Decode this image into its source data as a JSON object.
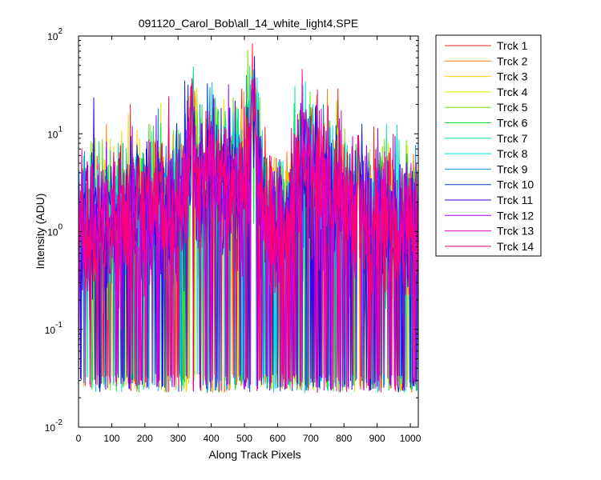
{
  "chart_data": {
    "type": "line",
    "title": "091120_Carol_Bob\\all_14_white_light4.SPE",
    "xlabel": "Along Track Pixels",
    "ylabel": "Intensity (ADU)",
    "xlim": [
      0,
      1024
    ],
    "ylim": [
      0.01,
      100
    ],
    "yscale": "log",
    "grid": false,
    "legend_position": "outside-right",
    "x_ticks": [
      "0",
      "100",
      "200",
      "300",
      "400",
      "500",
      "600",
      "700",
      "800",
      "900",
      "1000"
    ],
    "x_tick_values": [
      0,
      100,
      200,
      300,
      400,
      500,
      600,
      700,
      800,
      900,
      1000
    ],
    "y_ticks": [
      {
        "value": 0.01,
        "base": "10",
        "exp": "-2"
      },
      {
        "value": 0.1,
        "base": "10",
        "exp": "-1"
      },
      {
        "value": 1,
        "base": "10",
        "exp": "0"
      },
      {
        "value": 10,
        "base": "10",
        "exp": "1"
      },
      {
        "value": 100,
        "base": "10",
        "exp": "2"
      }
    ],
    "series": [
      {
        "name": "Trck 1",
        "color": "#ff2020"
      },
      {
        "name": "Trck 2",
        "color": "#ff7a00"
      },
      {
        "name": "Trck 3",
        "color": "#ffd200"
      },
      {
        "name": "Trck 4",
        "color": "#d8e600"
      },
      {
        "name": "Trck 5",
        "color": "#6ee600"
      },
      {
        "name": "Trck 6",
        "color": "#00e640"
      },
      {
        "name": "Trck 7",
        "color": "#00e6a0"
      },
      {
        "name": "Trck 8",
        "color": "#00dede"
      },
      {
        "name": "Trck 9",
        "color": "#0096e6"
      },
      {
        "name": "Trck 10",
        "color": "#0030c8"
      },
      {
        "name": "Trck 11",
        "color": "#3a00e6"
      },
      {
        "name": "Trck 12",
        "color": "#a000e6"
      },
      {
        "name": "Trck 13",
        "color": "#e600c8"
      },
      {
        "name": "Trck 14",
        "color": "#ff0070"
      }
    ],
    "profile": {
      "x": [
        0,
        50,
        100,
        150,
        200,
        250,
        290,
        310,
        330,
        340,
        350,
        380,
        400,
        420,
        450,
        480,
        500,
        515,
        525,
        535,
        550,
        580,
        620,
        650,
        680,
        700,
        730,
        760,
        800,
        840,
        870,
        900,
        950,
        1000,
        1024
      ],
      "y": [
        1.0,
        1.1,
        1.3,
        1.5,
        1.6,
        1.6,
        1.5,
        2.0,
        3.5,
        9.0,
        5.0,
        2.5,
        5.0,
        4.0,
        2.5,
        2.5,
        3.5,
        6.0,
        16.0,
        9.0,
        2.0,
        1.2,
        1.0,
        2.2,
        4.5,
        4.5,
        3.2,
        2.5,
        2.0,
        1.5,
        1.3,
        1.2,
        1.2,
        1.2,
        1.1
      ]
    },
    "spikes": [
      {
        "x": 342,
        "y": 37
      },
      {
        "x": 523,
        "y": 43
      },
      {
        "x": 532,
        "y": 25
      },
      {
        "x": 843,
        "y": 12
      }
    ],
    "noise_floor": 0.025
  }
}
